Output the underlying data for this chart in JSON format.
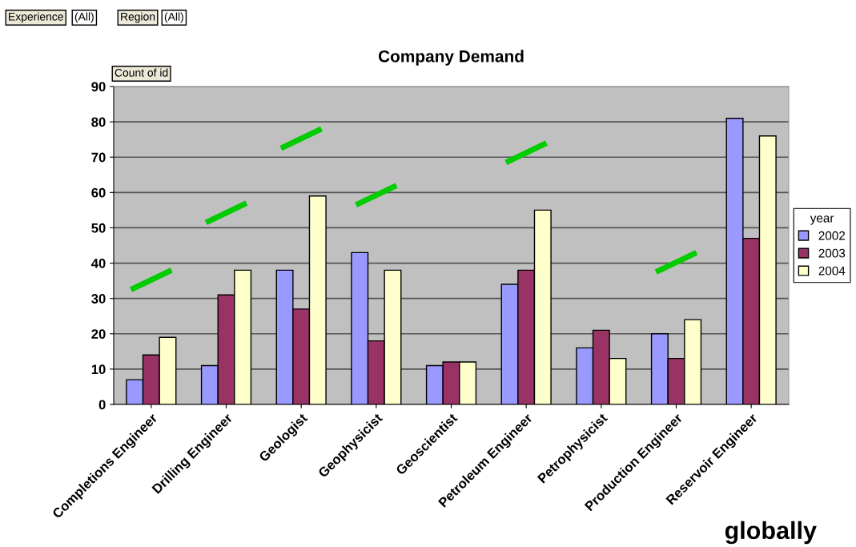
{
  "chart_data": {
    "type": "bar",
    "title": "Company Demand",
    "categories": [
      "Completions Engineer",
      "Drilling Engineer",
      "Geologist",
      "Geophysicist",
      "Geoscientist",
      "Petroleum Engineer",
      "Petrophysicist",
      "Production Engineer",
      "Reservoir Engineer"
    ],
    "series": [
      {
        "name": "2002",
        "color": "#9999ff",
        "values": [
          7,
          11,
          38,
          43,
          11,
          34,
          16,
          20,
          81
        ]
      },
      {
        "name": "2003",
        "color": "#993366",
        "values": [
          14,
          31,
          27,
          18,
          12,
          38,
          21,
          13,
          47
        ]
      },
      {
        "name": "2004",
        "color": "#ffffcc",
        "values": [
          19,
          38,
          59,
          38,
          12,
          55,
          13,
          24,
          76
        ]
      }
    ],
    "legend_title": "year",
    "legend": "right",
    "ylim": [
      0,
      90
    ],
    "yticks": [
      0,
      10,
      20,
      30,
      40,
      50,
      60,
      70,
      80,
      90
    ],
    "grid": "y",
    "annotations": [
      "Experience",
      "(All)",
      "Region",
      "(All)",
      "Count of id",
      "globally"
    ]
  }
}
